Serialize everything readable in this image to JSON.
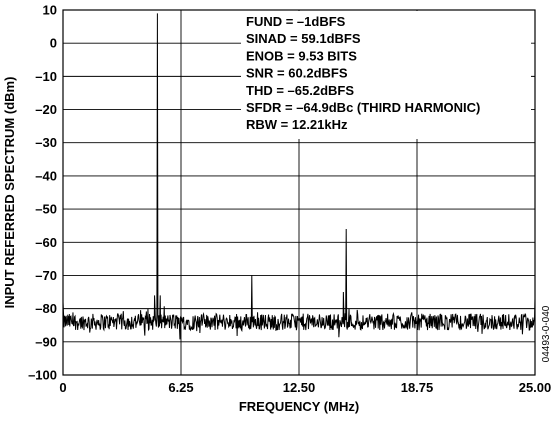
{
  "chart_data": {
    "type": "line",
    "xlabel": "FREQUENCY (MHz)",
    "ylabel": "INPUT REFERRED SPECTRUM (dBm)",
    "xlim": [
      0,
      25
    ],
    "ylim": [
      -100,
      10
    ],
    "x_ticks": [
      "0",
      "6.25",
      "12.50",
      "18.75",
      "25.00"
    ],
    "x_tick_values": [
      0,
      6.25,
      12.5,
      18.75,
      25
    ],
    "y_ticks": [
      "10",
      "0",
      "–10",
      "–20",
      "–30",
      "–40",
      "–50",
      "–60",
      "–70",
      "–80",
      "–90",
      "–100"
    ],
    "y_tick_values": [
      10,
      0,
      -10,
      -20,
      -30,
      -40,
      -50,
      -60,
      -70,
      -80,
      -90,
      -100
    ],
    "grid": true,
    "noise_floor_dBm": -84,
    "noise_spread_dBm": 2.5,
    "series": [
      {
        "color": "#000000",
        "peaks": [
          {
            "x": 0.0,
            "y": -78
          },
          {
            "x": 4.5,
            "y": -80
          },
          {
            "x": 4.85,
            "y": -76
          },
          {
            "x": 5.0,
            "y": 9
          },
          {
            "x": 5.15,
            "y": -76
          },
          {
            "x": 10.0,
            "y": -70
          },
          {
            "x": 14.85,
            "y": -75
          },
          {
            "x": 15.0,
            "y": -56
          },
          {
            "x": 15.15,
            "y": -80
          },
          {
            "x": 25.0,
            "y": -77
          }
        ]
      }
    ],
    "annotations": [
      "FUND = –1dBFS",
      "SINAD = 59.1dBFS",
      "ENOB = 9.53 BITS",
      "SNR = 60.2dBFS",
      "THD = –65.2dBFS",
      "SFDR = –64.9dBc (THIRD HARMONIC)",
      "RBW = 12.21kHz"
    ]
  },
  "figure_id": "04493-0-040"
}
